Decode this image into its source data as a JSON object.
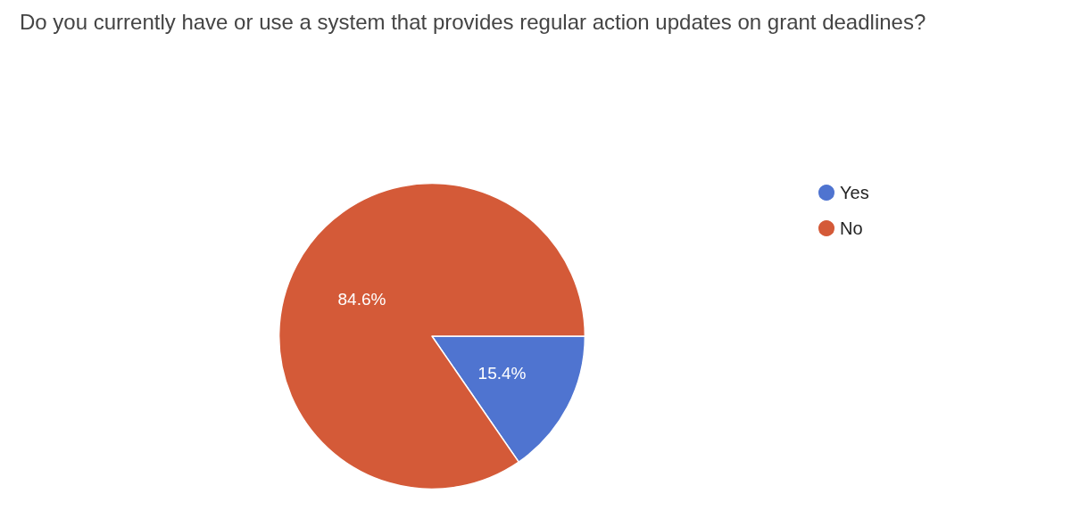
{
  "chart_data": {
    "type": "pie",
    "title": "Do you currently have or use a system that provides regular action updates on grant deadlines?",
    "categories": [
      "Yes",
      "No"
    ],
    "values": [
      15.4,
      84.6
    ],
    "colors": [
      "#4f74d0",
      "#d45a38"
    ],
    "value_labels": [
      "15.4%",
      "84.6%"
    ],
    "legend": "right"
  }
}
